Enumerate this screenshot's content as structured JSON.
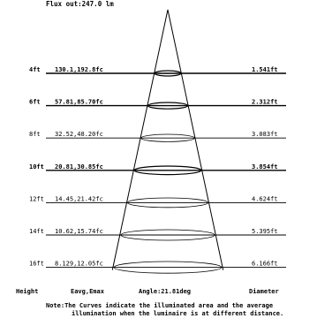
{
  "title": "Flux out:247.0 lm",
  "rows": [
    {
      "height": "4ft",
      "illum": "130.1,192.8fc",
      "diameter": "1.541ft",
      "bold": true
    },
    {
      "height": "6ft",
      "illum": "57.81,85.70fc",
      "diameter": "2.312ft",
      "bold": true
    },
    {
      "height": "8ft",
      "illum": "32.52,48.20fc",
      "diameter": "3.083ft",
      "bold": false
    },
    {
      "height": "10ft",
      "illum": "20.81,30.85fc",
      "diameter": "3.854ft",
      "bold": true
    },
    {
      "height": "12ft",
      "illum": "14.45,21.42fc",
      "diameter": "4.624ft",
      "bold": false
    },
    {
      "height": "14ft",
      "illum": "10.62,15.74fc",
      "diameter": "5.395ft",
      "bold": false
    },
    {
      "height": "16ft",
      "illum": "8.129,12.05fc",
      "diameter": "6.166ft",
      "bold": false
    }
  ],
  "footer": {
    "height_label": "Height",
    "illum_label": "Eavg,Emax",
    "angle_label": "Angle:21.81deg",
    "diameter_label": "Diameter"
  },
  "note": {
    "line1": "Note:The Curves indicate the illuminated area and the average",
    "line2": "illumination when the luminaire is at different distance."
  }
}
